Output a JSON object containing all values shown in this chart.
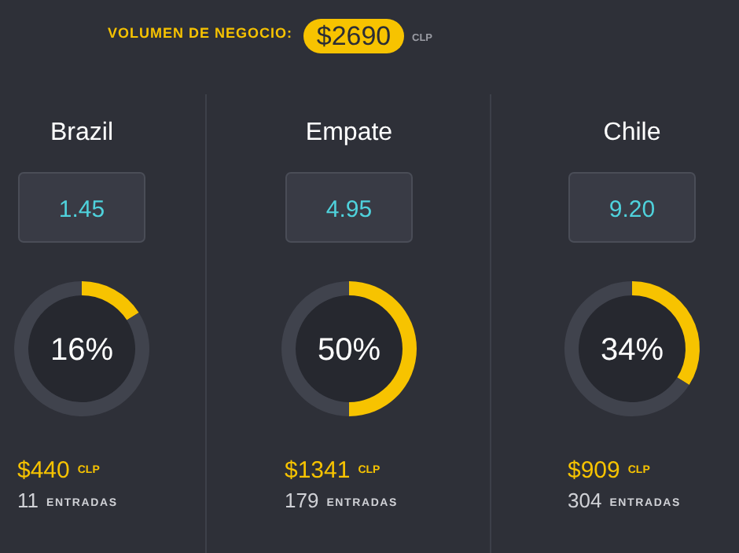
{
  "chart_data": [
    {
      "type": "other",
      "title": "VOLUMEN DE NEGOCIO:",
      "annotations": [
        "$2690",
        "CLP"
      ]
    },
    {
      "type": "donut",
      "title": "Brazil",
      "categories": [
        null,
        null
      ],
      "values": [
        16,
        84
      ],
      "colors": [
        "#f7c300",
        "#40434d"
      ],
      "annotations": [
        "16%",
        "1.45",
        "$440",
        "CLP",
        "11",
        "ENTRADAS"
      ]
    },
    {
      "type": "donut",
      "title": "Empate",
      "categories": [
        null,
        null
      ],
      "values": [
        50,
        50
      ],
      "colors": [
        "#f7c300",
        "#40434d"
      ],
      "annotations": [
        "50%",
        "4.95",
        "$1341",
        "CLP",
        "179",
        "ENTRADAS"
      ]
    },
    {
      "type": "donut",
      "title": "Chile",
      "categories": [
        null,
        null
      ],
      "values": [
        34,
        66
      ],
      "colors": [
        "#f7c300",
        "#40434d"
      ],
      "annotations": [
        "34%",
        "9.20",
        "$909",
        "CLP",
        "304",
        "ENTRADAS"
      ]
    }
  ]
}
